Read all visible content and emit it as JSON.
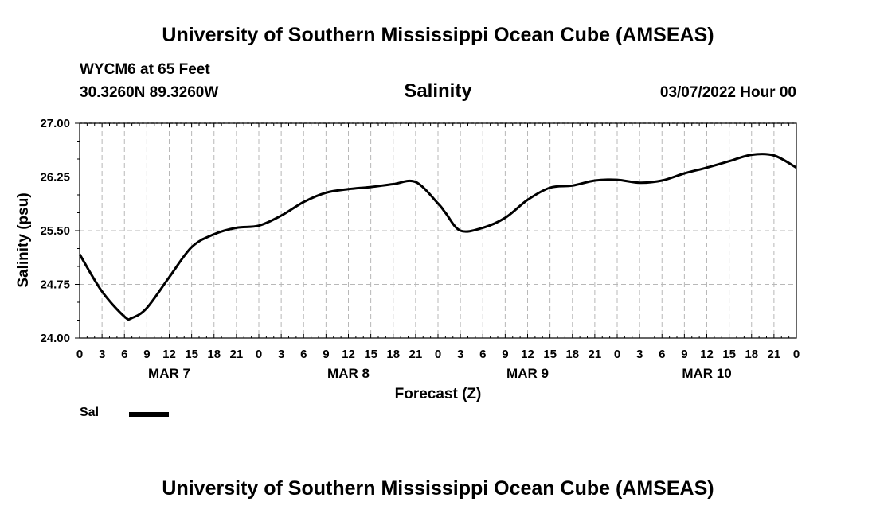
{
  "header": {
    "title": "University of Southern Mississippi Ocean Cube (AMSEAS)",
    "station": "WYCM6 at 65 Feet",
    "coords": "30.3260N  89.3260W",
    "date_time": "03/07/2022 Hour 00"
  },
  "footer": {
    "title": "University of Southern Mississippi Ocean Cube (AMSEAS)"
  },
  "chart_data": {
    "type": "line",
    "title": "Salinity",
    "xlabel": "Forecast (Z)",
    "ylabel": "Salinity (psu)",
    "ylim": [
      24.0,
      27.0
    ],
    "xlim": [
      0,
      96
    ],
    "y_ticks": [
      "24.00",
      "24.75",
      "25.50",
      "26.25",
      "27.00"
    ],
    "x_tick_labels": [
      "0",
      "3",
      "6",
      "9",
      "12",
      "15",
      "18",
      "21",
      "0",
      "3",
      "6",
      "9",
      "12",
      "15",
      "18",
      "21",
      "0",
      "3",
      "6",
      "9",
      "12",
      "15",
      "18",
      "21",
      "0",
      "3",
      "6",
      "9",
      "12",
      "15",
      "18",
      "21",
      "0"
    ],
    "day_labels": [
      {
        "label": "MAR 7",
        "hour": 12
      },
      {
        "label": "MAR 8",
        "hour": 36
      },
      {
        "label": "MAR 9",
        "hour": 60
      },
      {
        "label": "MAR 10",
        "hour": 84
      }
    ],
    "grid": true,
    "series": [
      {
        "name": "Sal",
        "color": "#000000",
        "x": [
          0,
          3,
          6,
          7,
          9,
          12,
          15,
          18,
          21,
          24,
          27,
          30,
          33,
          36,
          39,
          42,
          45,
          48,
          49,
          51,
          54,
          57,
          60,
          63,
          66,
          69,
          72,
          75,
          78,
          81,
          84,
          87,
          90,
          93,
          96
        ],
        "values": [
          25.17,
          24.65,
          24.3,
          24.28,
          24.42,
          24.85,
          25.27,
          25.45,
          25.54,
          25.57,
          25.71,
          25.9,
          26.03,
          26.08,
          26.11,
          26.15,
          26.18,
          25.88,
          25.75,
          25.5,
          25.54,
          25.68,
          25.93,
          26.1,
          26.13,
          26.2,
          26.21,
          26.17,
          26.2,
          26.3,
          26.38,
          26.47,
          26.56,
          26.55,
          26.38
        ]
      }
    ],
    "legend": [
      {
        "label": "Sal"
      }
    ]
  }
}
